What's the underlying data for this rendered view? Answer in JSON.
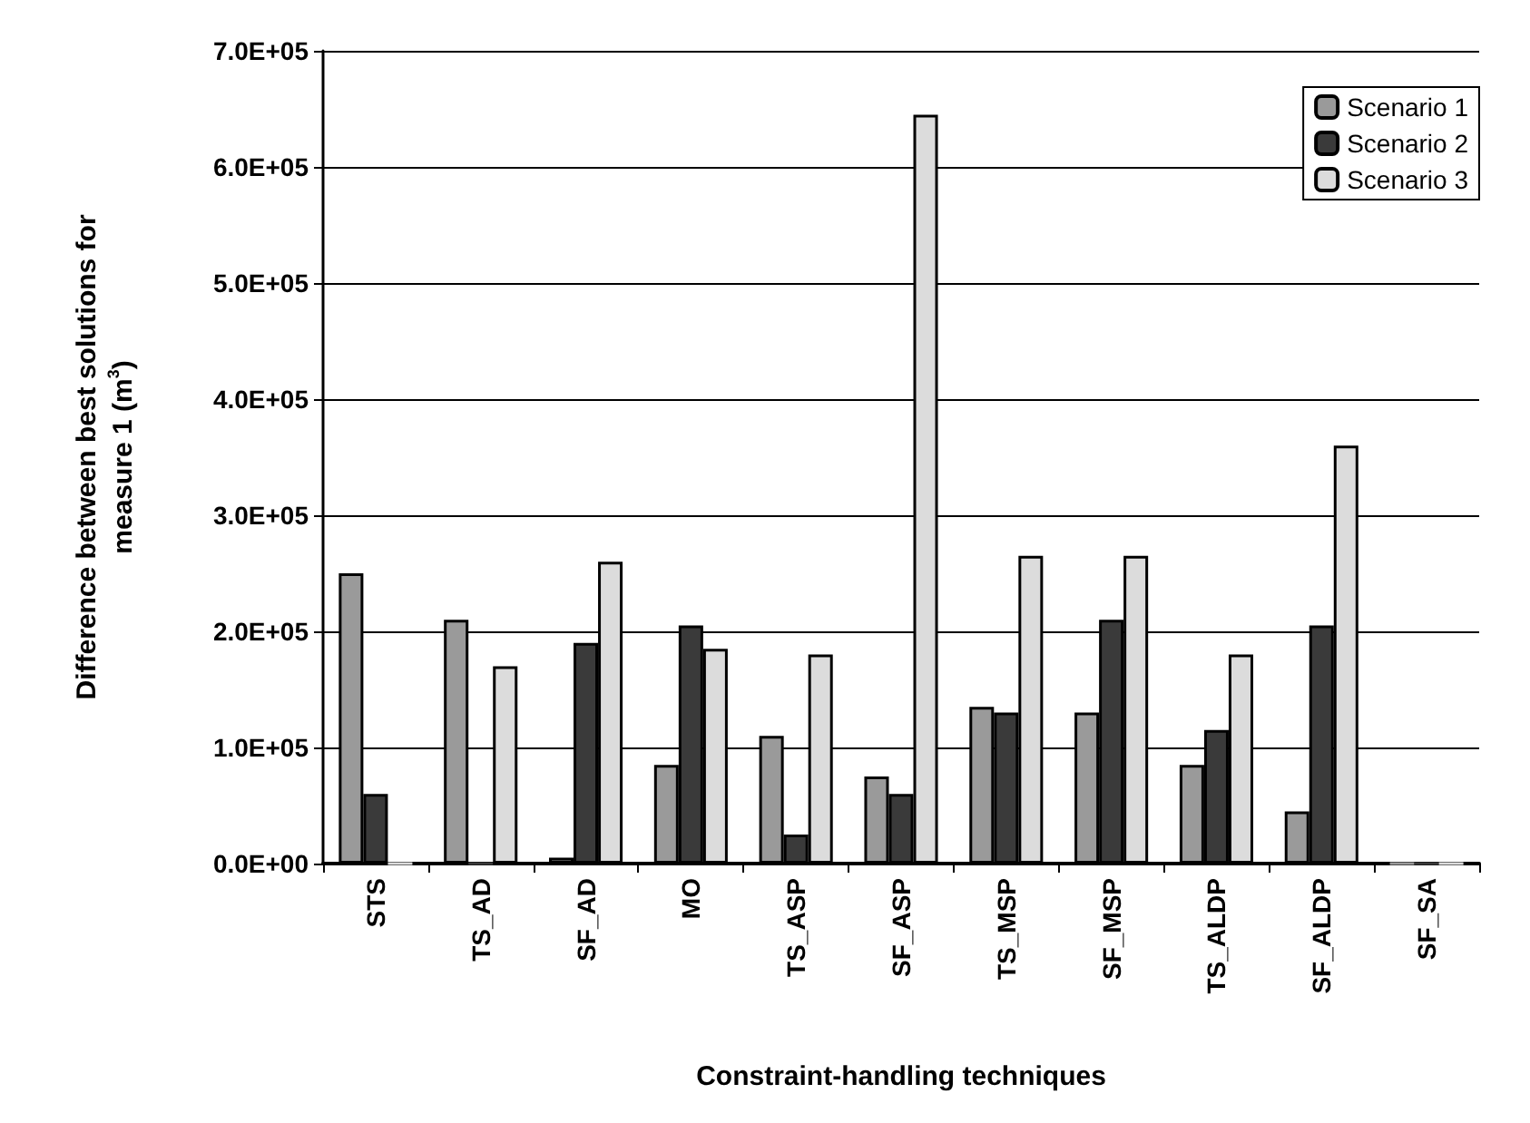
{
  "chart_data": {
    "type": "bar",
    "xlabel": "Constraint-handling techniques",
    "ylabel": "Difference between best solutions for\nmeasure 1 (m$^{3}$)",
    "categories": [
      "STS",
      "TS_AD",
      "SF_AD",
      "MO",
      "TS_ASP",
      "SF_ASP",
      "TS_MSP",
      "SF_MSP",
      "TS_ALDP",
      "SF_ALDP",
      "SF_SA"
    ],
    "series": [
      {
        "name": "Scenario 1",
        "color": "#9a9a9a",
        "values": [
          250000,
          210000,
          5000,
          85000,
          110000,
          75000,
          135000,
          130000,
          85000,
          45000,
          0
        ]
      },
      {
        "name": "Scenario 2",
        "color": "#3a3a3a",
        "values": [
          60000,
          0,
          190000,
          205000,
          25000,
          60000,
          130000,
          210000,
          115000,
          205000,
          0
        ]
      },
      {
        "name": "Scenario 3",
        "color": "#dcdcdc",
        "values": [
          0,
          170000,
          260000,
          185000,
          180000,
          645000,
          265000,
          265000,
          180000,
          360000,
          0
        ]
      }
    ],
    "ylim": [
      0,
      700000
    ],
    "yticks": [
      {
        "value": 0,
        "label": "0.0E+00"
      },
      {
        "value": 100000,
        "label": "1.0E+05"
      },
      {
        "value": 200000,
        "label": "2.0E+05"
      },
      {
        "value": 300000,
        "label": "3.0E+05"
      },
      {
        "value": 400000,
        "label": "4.0E+05"
      },
      {
        "value": 500000,
        "label": "5.0E+05"
      },
      {
        "value": 600000,
        "label": "6.0E+05"
      },
      {
        "value": 700000,
        "label": "7.0E+05"
      }
    ],
    "grid": "y",
    "legend": "top right"
  }
}
